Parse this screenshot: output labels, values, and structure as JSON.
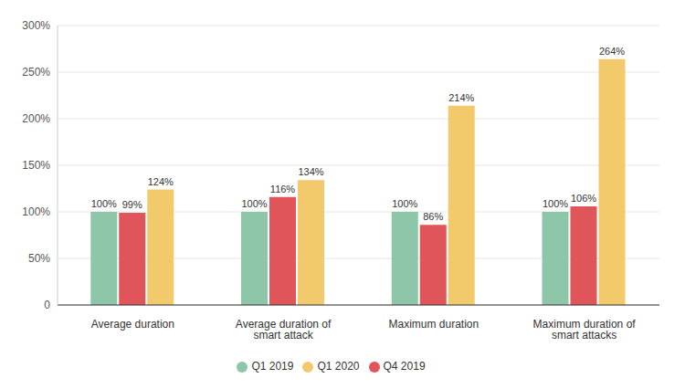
{
  "chart_data": {
    "type": "bar",
    "categories": [
      "Average duration",
      "Average duration of smart attack",
      "Maximum duration",
      "Maximum duration of smart attacks"
    ],
    "series": [
      {
        "name": "Q1 2019",
        "color": "#8ec6a9",
        "values": [
          100,
          100,
          100,
          100
        ],
        "value_labels": [
          "100%",
          "100%",
          "100%",
          "100%"
        ]
      },
      {
        "name": "Q4 2019",
        "color": "#e0555a",
        "values": [
          99,
          116,
          86,
          106
        ],
        "value_labels": [
          "99%",
          "116%",
          "86%",
          "106%"
        ]
      },
      {
        "name": "Q1 2020",
        "color": "#f2c96b",
        "values": [
          124,
          134,
          214,
          264
        ],
        "value_labels": [
          "124%",
          "134%",
          "214%",
          "264%"
        ]
      }
    ],
    "ylim": [
      0,
      300
    ],
    "yticks": [
      0,
      {
        "value": 50,
        "label": "50%"
      },
      {
        "value": 100,
        "label": "100%"
      },
      {
        "value": 150,
        "label": "150%"
      },
      {
        "value": 200,
        "label": "200%"
      },
      {
        "value": 250,
        "label": "250%"
      },
      {
        "value": 300,
        "label": "300%"
      }
    ],
    "grid": true,
    "legend": "bottom",
    "data_labels": true
  }
}
